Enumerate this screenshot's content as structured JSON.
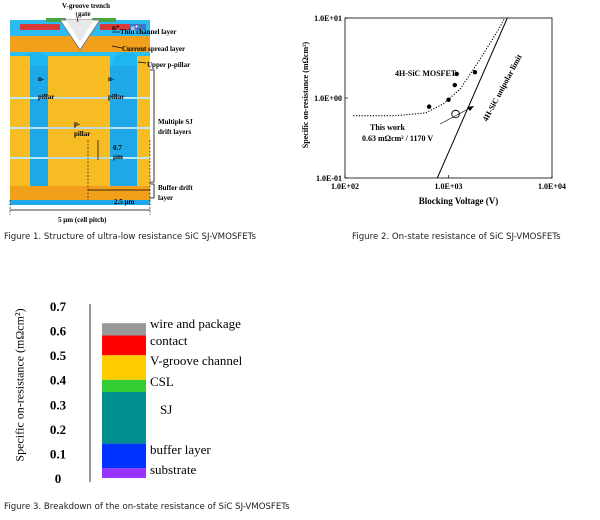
{
  "figure1": {
    "caption": "Figure 1. Structure of ultra-low resistance SiC SJ-VMOSFETs",
    "labels": {
      "gate": [
        "V-groove trench",
        "gate"
      ],
      "n_plus": "n⁺",
      "p_plus": "p⁺",
      "thin_channel": "Thin channel layer",
      "current_spread": "Current spread layer",
      "upper_p_pillar": "Upper p-pillar",
      "n_pillar_left": [
        "n-",
        "pillar"
      ],
      "n_pillar_right": [
        "n-",
        "pillar"
      ],
      "p_pillar": [
        "p-",
        "pillar"
      ],
      "multiple_sj": [
        "Multiple SJ",
        "drift layers"
      ],
      "dim_07": [
        "0.7",
        "μm"
      ],
      "dim_25": "2.5 μm",
      "buffer": [
        "Buffer drift",
        "layer"
      ],
      "cell_pitch": "5 μm (cell pitch)"
    }
  },
  "figure2": {
    "caption": "Figure 2. On-state resistance of SiC SJ-VMOSFETs",
    "ylabel": "Specific on-resistance (mΩcm²)",
    "xlabel": "Blocking Voltage (V)",
    "annot_mosfets": "4H-SiC MOSFETs",
    "annot_limit": "4H-SiC unipolar limit",
    "annot_thiswork": [
      "This work",
      "0.63 mΩcm² / 1170 V"
    ]
  },
  "figure3": {
    "caption": "Figure 3. Breakdown of the on-state resistance of SiC SJ-VMOSFETs",
    "ylabel": "Specific on-resistance (mΩcm²)"
  },
  "chart_data": [
    {
      "type": "scatter",
      "x_scale": "log",
      "y_scale": "log",
      "xlim": [
        100,
        10000
      ],
      "ylim": [
        0.1,
        10
      ],
      "x_ticks": [
        "1.0E+02",
        "1.0E+03",
        "1.0E+04"
      ],
      "y_ticks": [
        "1.0E+01",
        "1.0E+00",
        "1.0E-01"
      ],
      "xlabel": "Blocking Voltage (V)",
      "ylabel": "Specific on-resistance (mΩcm²)",
      "series": [
        {
          "name": "4H-SiC MOSFETs",
          "marker": "filled-circle",
          "points": [
            [
              650,
              0.78
            ],
            [
              1000,
              0.95
            ],
            [
              1150,
              1.45
            ],
            [
              1200,
              2.0
            ],
            [
              1800,
              2.1
            ]
          ]
        },
        {
          "name": "This work",
          "marker": "open-circle",
          "points": [
            [
              1170,
              0.63
            ]
          ]
        }
      ],
      "reference_curves": [
        {
          "name": "4H-SiC unipolar limit",
          "style": "solid",
          "points": [
            [
              780,
              0.1
            ],
            [
              3700,
              10
            ]
          ]
        },
        {
          "style": "dotted",
          "points": [
            [
              120,
              0.6
            ],
            [
              300,
              0.6
            ],
            [
              600,
              0.65
            ],
            [
              900,
              0.85
            ],
            [
              1300,
              1.3
            ],
            [
              2000,
              3.0
            ],
            [
              3000,
              7.0
            ],
            [
              3500,
              10
            ]
          ]
        }
      ],
      "grid": false
    },
    {
      "type": "bar",
      "stacked": true,
      "ylabel": "Specific on-resistance (mΩcm²)",
      "ylim": [
        0,
        0.7
      ],
      "y_ticks": [
        "0",
        "0.1",
        "0.2",
        "0.3",
        "0.4",
        "0.5",
        "0.6",
        "0.7"
      ],
      "segments": [
        {
          "name": "substrate",
          "from": 0.0,
          "to": 0.04,
          "color": "#9933ff"
        },
        {
          "name": "buffer layer",
          "from": 0.04,
          "to": 0.14,
          "color": "#0033ff"
        },
        {
          "name": "SJ",
          "from": 0.14,
          "to": 0.35,
          "color": "#008f8f"
        },
        {
          "name": "CSL",
          "from": 0.35,
          "to": 0.4,
          "color": "#33cc33"
        },
        {
          "name": "V-groove channel",
          "from": 0.4,
          "to": 0.5,
          "color": "#ffcc00"
        },
        {
          "name": "contact",
          "from": 0.5,
          "to": 0.58,
          "color": "#ff0000"
        },
        {
          "name": "wire and package",
          "from": 0.58,
          "to": 0.63,
          "color": "#999999"
        }
      ]
    }
  ]
}
